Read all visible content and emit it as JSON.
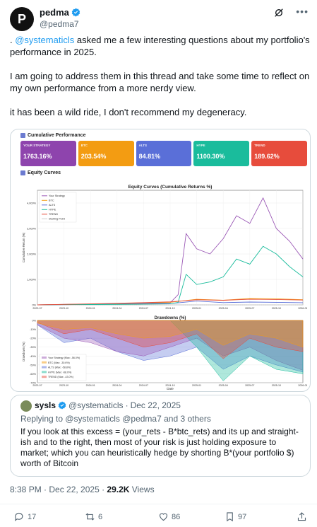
{
  "author": {
    "display_name": "pedma",
    "handle": "@pedma7",
    "avatar_letter": "P"
  },
  "post": {
    "line1_prefix": ". ",
    "line1_mention": "@systematicls",
    "line1_rest": " asked me a few interesting questions about my portfolio's performance in 2025.",
    "paragraph2": "I am going to address them in this thread and take some time to reflect on my own performance from a more nerdy view.",
    "paragraph3": "it has been a wild ride, I don't recommend my degeneracy."
  },
  "media": {
    "section_cumulative": "Cumulative Performance",
    "cards": [
      {
        "label": "YOUR STRATEGY",
        "value": "1763.16%",
        "color": "#8e44ad"
      },
      {
        "label": "BTC",
        "value": "203.54%",
        "color": "#f39c12"
      },
      {
        "label": "ALTS",
        "value": "84.81%",
        "color": "#5a6fd8"
      },
      {
        "label": "HYPE",
        "value": "1100.30%",
        "color": "#1abc9c"
      },
      {
        "label": "TREND",
        "value": "189.62%",
        "color": "#e74c3c"
      }
    ],
    "section_equity": "Equity Curves"
  },
  "chart_data": [
    {
      "type": "line",
      "title": "Equity Curves (Cumulative Returns %)",
      "ylabel": "Cumulative Return (%)",
      "x_ticks": [
        "2023-07",
        "2023-10",
        "2024-01",
        "2024-04",
        "2024-07",
        "2024-10",
        "2025-01",
        "2025-04",
        "2025-07",
        "2025-10",
        "2026-01"
      ],
      "y_ticks": [
        "0%",
        "1,000%",
        "2,000%",
        "3,000%",
        "4,000%"
      ],
      "ylim": [
        0,
        4500
      ],
      "legend": [
        "Your Strategy",
        "BTC",
        "ALTS",
        "HYPE",
        "TREND",
        "Starting Point"
      ],
      "series_colors": [
        "#9b59b6",
        "#f39c12",
        "#5a6fd8",
        "#1abc9c",
        "#e74c3c",
        "#cccccc"
      ],
      "series": [
        {
          "name": "Your Strategy",
          "x": [
            0,
            1,
            2,
            3,
            4,
            5,
            5.3,
            5.6,
            6.0,
            6.5,
            7.0,
            7.5,
            8.0,
            8.5,
            9.0,
            9.5,
            10.0
          ],
          "values": [
            0,
            20,
            30,
            40,
            60,
            80,
            400,
            2800,
            2200,
            2000,
            2600,
            3500,
            3200,
            4200,
            3000,
            2500,
            1800
          ]
        },
        {
          "name": "BTC",
          "x": [
            0,
            2,
            4,
            5,
            6,
            7,
            8,
            9,
            10
          ],
          "values": [
            0,
            30,
            80,
            100,
            220,
            180,
            250,
            240,
            204
          ]
        },
        {
          "name": "ALTS",
          "x": [
            0,
            2,
            4,
            5,
            6,
            7,
            8,
            9,
            10
          ],
          "values": [
            0,
            20,
            40,
            50,
            150,
            90,
            110,
            100,
            85
          ]
        },
        {
          "name": "HYPE",
          "x": [
            0,
            1,
            2,
            3,
            4,
            5,
            5.3,
            5.6,
            6.0,
            6.5,
            7.0,
            7.5,
            8.0,
            8.5,
            9.0,
            9.5,
            10.0
          ],
          "values": [
            0,
            10,
            15,
            20,
            30,
            40,
            100,
            1200,
            800,
            900,
            1100,
            1800,
            1600,
            2300,
            2000,
            1500,
            1100
          ]
        },
        {
          "name": "TREND",
          "x": [
            0,
            2,
            4,
            5,
            6,
            7,
            8,
            9,
            10
          ],
          "values": [
            0,
            40,
            90,
            120,
            200,
            180,
            220,
            210,
            190
          ]
        }
      ]
    },
    {
      "type": "area",
      "title": "Drawdowns (%)",
      "xlabel": "Date",
      "ylabel": "Drawdown (%)",
      "y_ticks": [
        "0%",
        "-10%",
        "-20%",
        "-30%",
        "-40%",
        "-50%",
        "-60%",
        "-70%"
      ],
      "ylim": [
        -70,
        0
      ],
      "legend": [
        "Your Strategy (Max: -56.0%)",
        "BTC (Max: -30.6%)",
        "ALTS (Max: -58.8%)",
        "HYPE (Max: -68.0%)",
        "TREND (Max: -43.0%)"
      ],
      "series": [
        {
          "name": "Your Strategy",
          "x": [
            0,
            1,
            2,
            3,
            4,
            5,
            6,
            7,
            8,
            9,
            10
          ],
          "values": [
            -5,
            -20,
            -25,
            -35,
            -40,
            -30,
            -20,
            -40,
            -30,
            -45,
            -56
          ]
        },
        {
          "name": "BTC",
          "x": [
            0,
            1,
            2,
            3,
            4,
            5,
            6,
            7,
            8,
            9,
            10
          ],
          "values": [
            -3,
            -10,
            -8,
            -15,
            -20,
            -18,
            -10,
            -28,
            -15,
            -20,
            -30
          ]
        },
        {
          "name": "ALTS",
          "x": [
            0,
            1,
            2,
            3,
            4,
            5,
            6,
            7,
            8,
            9,
            10
          ],
          "values": [
            -5,
            -25,
            -20,
            -35,
            -45,
            -40,
            -30,
            -55,
            -40,
            -50,
            -58
          ]
        },
        {
          "name": "HYPE",
          "x": [
            0,
            1,
            2,
            3,
            4,
            5,
            6,
            7,
            8,
            9,
            10
          ],
          "values": [
            0,
            0,
            0,
            0,
            0,
            0,
            -30,
            -68,
            -40,
            -55,
            -60
          ]
        },
        {
          "name": "TREND",
          "x": [
            0,
            1,
            2,
            3,
            4,
            5,
            6,
            7,
            8,
            9,
            10
          ],
          "values": [
            -2,
            -15,
            -10,
            -20,
            -30,
            -25,
            -15,
            -43,
            -20,
            -30,
            -35
          ]
        }
      ]
    }
  ],
  "quote": {
    "name": "sysls",
    "handle": "@systematicls",
    "sep": "·",
    "date": "Dec 22, 2025",
    "reply_to": "Replying to @systematicls @pedma7 and 3 others",
    "text": "If you look at this excess = (your_rets - B*btc_rets) and its up and straight-ish and to the right, then most of your risk is just holding exposure to market; which you can heuristically hedge by shorting B*(your portfolio $) worth of Bitcoin"
  },
  "meta": {
    "time": "8:38 PM · Dec 22, 2025 · ",
    "views_count": "29.2K",
    "views_label": " Views"
  },
  "actions": {
    "replies": "17",
    "reposts": "6",
    "likes": "86",
    "bookmarks": "97"
  }
}
